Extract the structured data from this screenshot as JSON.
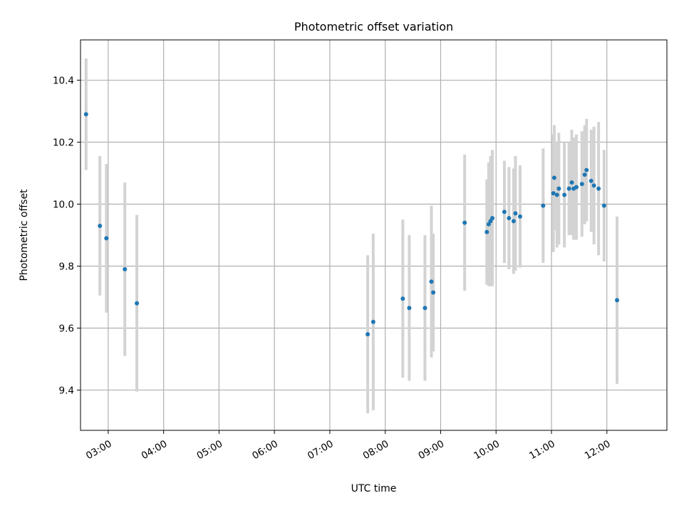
{
  "colors": {
    "point": "#1f77b4",
    "errorbar": "#d3d3d3",
    "grid": "#b0b0b0",
    "axes": "#000000",
    "background": "#ffffff"
  },
  "chart_data": {
    "type": "scatter",
    "title": "Photometric offset variation",
    "xlabel": "UTC time",
    "ylabel": "Photometric offset",
    "grid": true,
    "x_ticks": [
      "03:00",
      "04:00",
      "05:00",
      "06:00",
      "07:00",
      "08:00",
      "09:00",
      "10:00",
      "11:00",
      "12:00"
    ],
    "y_ticks": [
      9.4,
      9.6,
      9.8,
      10.0,
      10.2,
      10.4
    ],
    "xlim": [
      "02:30",
      "13:05"
    ],
    "ylim": [
      9.27,
      10.53
    ],
    "series": [
      {
        "marker": "point-with-errorbar",
        "points": [
          {
            "x": "02:36",
            "y": 10.29,
            "yerr": 0.18
          },
          {
            "x": "02:51",
            "y": 9.93,
            "yerr": 0.225
          },
          {
            "x": "02:58",
            "y": 9.89,
            "yerr": 0.24
          },
          {
            "x": "03:18",
            "y": 9.79,
            "yerr": 0.28
          },
          {
            "x": "03:31",
            "y": 9.68,
            "yerr": 0.285
          },
          {
            "x": "07:41",
            "y": 9.58,
            "yerr": 0.255
          },
          {
            "x": "07:47",
            "y": 9.62,
            "yerr": 0.285
          },
          {
            "x": "08:19",
            "y": 9.695,
            "yerr": 0.255
          },
          {
            "x": "08:26",
            "y": 9.665,
            "yerr": 0.235
          },
          {
            "x": "08:43",
            "y": 9.665,
            "yerr": 0.235
          },
          {
            "x": "08:50",
            "y": 9.75,
            "yerr": 0.245
          },
          {
            "x": "08:52",
            "y": 9.715,
            "yerr": 0.19
          },
          {
            "x": "09:26",
            "y": 9.94,
            "yerr": 0.22
          },
          {
            "x": "09:50",
            "y": 9.91,
            "yerr": 0.17
          },
          {
            "x": "09:52",
            "y": 9.935,
            "yerr": 0.2
          },
          {
            "x": "09:54",
            "y": 9.945,
            "yerr": 0.21
          },
          {
            "x": "09:56",
            "y": 9.955,
            "yerr": 0.22
          },
          {
            "x": "10:09",
            "y": 9.975,
            "yerr": 0.165
          },
          {
            "x": "10:14",
            "y": 9.955,
            "yerr": 0.165
          },
          {
            "x": "10:19",
            "y": 9.945,
            "yerr": 0.17
          },
          {
            "x": "10:21",
            "y": 9.97,
            "yerr": 0.185
          },
          {
            "x": "10:26",
            "y": 9.96,
            "yerr": 0.165
          },
          {
            "x": "10:51",
            "y": 9.995,
            "yerr": 0.185
          },
          {
            "x": "11:02",
            "y": 10.035,
            "yerr": 0.19
          },
          {
            "x": "11:03",
            "y": 10.085,
            "yerr": 0.17
          },
          {
            "x": "11:06",
            "y": 10.03,
            "yerr": 0.17
          },
          {
            "x": "11:08",
            "y": 10.05,
            "yerr": 0.18
          },
          {
            "x": "11:14",
            "y": 10.03,
            "yerr": 0.17
          },
          {
            "x": "11:19",
            "y": 10.05,
            "yerr": 0.15
          },
          {
            "x": "11:22",
            "y": 10.07,
            "yerr": 0.17
          },
          {
            "x": "11:24",
            "y": 10.05,
            "yerr": 0.165
          },
          {
            "x": "11:27",
            "y": 10.055,
            "yerr": 0.17
          },
          {
            "x": "11:33",
            "y": 10.065,
            "yerr": 0.17
          },
          {
            "x": "11:36",
            "y": 10.095,
            "yerr": 0.16
          },
          {
            "x": "11:38",
            "y": 10.11,
            "yerr": 0.165
          },
          {
            "x": "11:43",
            "y": 10.075,
            "yerr": 0.165
          },
          {
            "x": "11:46",
            "y": 10.06,
            "yerr": 0.19
          },
          {
            "x": "11:51",
            "y": 10.05,
            "yerr": 0.215
          },
          {
            "x": "11:57",
            "y": 9.995,
            "yerr": 0.18
          },
          {
            "x": "12:11",
            "y": 9.69,
            "yerr": 0.27
          }
        ]
      }
    ]
  }
}
